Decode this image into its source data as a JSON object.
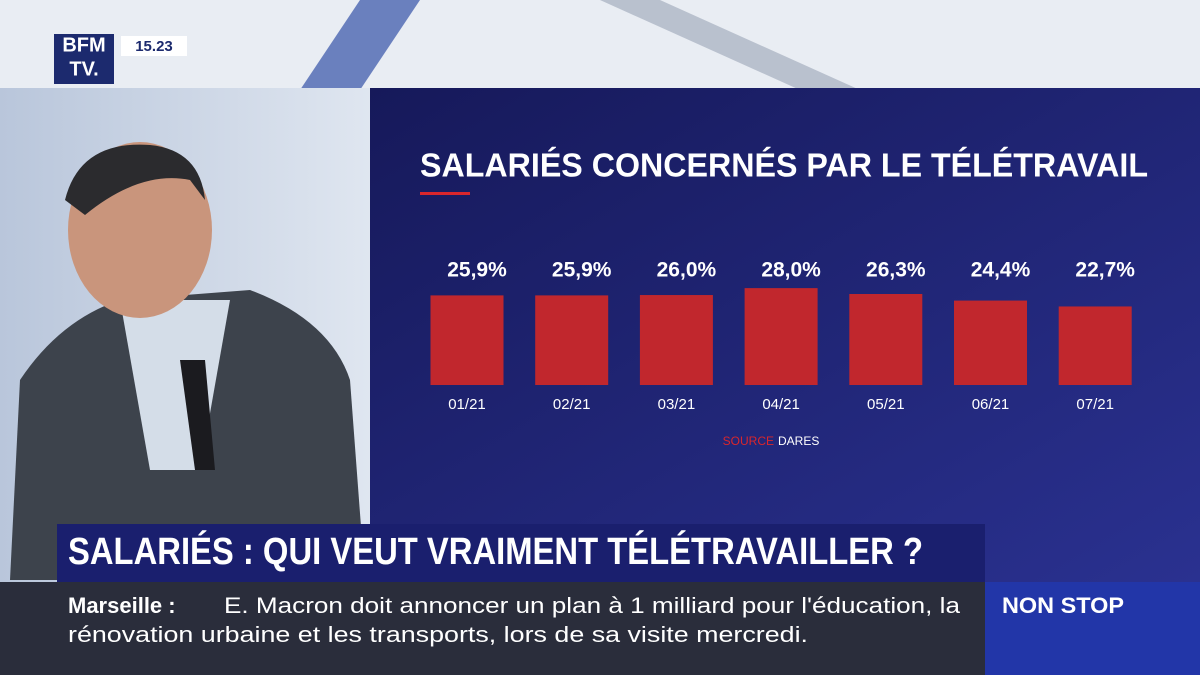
{
  "channel": {
    "logo_line1": "BFM",
    "logo_line2": "TV.",
    "time": "15.23"
  },
  "chart_data": {
    "type": "bar",
    "title": "SALARIÉS CONCERNÉS PAR LE TÉLÉTRAVAIL",
    "categories": [
      "01/21",
      "02/21",
      "03/21",
      "04/21",
      "05/21",
      "06/21",
      "07/21"
    ],
    "values": [
      25.9,
      25.9,
      26.0,
      28.0,
      26.3,
      24.4,
      22.7
    ],
    "value_labels": [
      "25,9%",
      "25,9%",
      "26,0%",
      "28,0%",
      "26,3%",
      "24,4%",
      "22,7%"
    ],
    "color": "#c1272d",
    "source_label": "SOURCE",
    "source": "DARES"
  },
  "headline": "SALARIÉS : QUI VEUT VRAIMENT TÉLÉTRAVAILLER ?",
  "ticker": {
    "place": "Marseille :",
    "line1": "E. Macron doit annoncer un plan à 1 milliard pour l'éducation, la",
    "line2": "rénovation urbaine et les transports, lors de sa visite mercredi."
  },
  "program": "NON STOP"
}
